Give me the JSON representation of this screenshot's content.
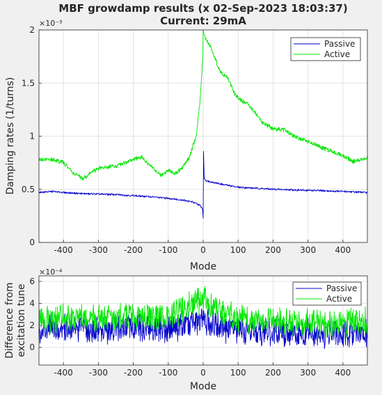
{
  "title": [
    "MBF growdamp results (x 02-Sep-2023 18:03:37)",
    "Current: 29mA"
  ],
  "colors": {
    "passive": "#0000cc",
    "active": "#00e600",
    "grid": "#dcdcdc",
    "axis": "#262626"
  },
  "chart_data": [
    {
      "type": "line",
      "xlabel": "Mode",
      "ylabel": "Damping rates (1/turns)",
      "y_exponent": "×10⁻³",
      "xlim": [
        -470,
        470
      ],
      "ylim": [
        0,
        2
      ],
      "xticks": [
        -400,
        -300,
        -200,
        -100,
        0,
        100,
        200,
        300,
        400
      ],
      "yticks": [
        0,
        0.5,
        1,
        1.5,
        2
      ],
      "ytick_labels": [
        "0",
        "0.5",
        "1",
        "1.5",
        "2"
      ],
      "grid": true,
      "legend_position": "top-right",
      "series": [
        {
          "name": "Passive",
          "points": [
            [
              -470,
              0.47
            ],
            [
              -430,
              0.48
            ],
            [
              -400,
              0.47
            ],
            [
              -350,
              0.46
            ],
            [
              -300,
              0.455
            ],
            [
              -250,
              0.45
            ],
            [
              -200,
              0.44
            ],
            [
              -150,
              0.43
            ],
            [
              -100,
              0.415
            ],
            [
              -60,
              0.4
            ],
            [
              -30,
              0.38
            ],
            [
              -10,
              0.35
            ],
            [
              -2,
              0.32
            ],
            [
              0,
              0.23
            ],
            [
              1,
              0.85
            ],
            [
              3,
              0.6
            ],
            [
              10,
              0.58
            ],
            [
              50,
              0.55
            ],
            [
              100,
              0.52
            ],
            [
              200,
              0.5
            ],
            [
              300,
              0.49
            ],
            [
              400,
              0.48
            ],
            [
              470,
              0.47
            ]
          ]
        },
        {
          "name": "Active",
          "points": [
            [
              -470,
              0.78
            ],
            [
              -430,
              0.78
            ],
            [
              -400,
              0.75
            ],
            [
              -370,
              0.65
            ],
            [
              -345,
              0.6
            ],
            [
              -320,
              0.66
            ],
            [
              -300,
              0.7
            ],
            [
              -250,
              0.72
            ],
            [
              -200,
              0.78
            ],
            [
              -175,
              0.8
            ],
            [
              -150,
              0.72
            ],
            [
              -120,
              0.63
            ],
            [
              -100,
              0.68
            ],
            [
              -80,
              0.65
            ],
            [
              -60,
              0.7
            ],
            [
              -40,
              0.8
            ],
            [
              -20,
              1.0
            ],
            [
              -10,
              1.3
            ],
            [
              -5,
              1.55
            ],
            [
              -1,
              1.75
            ],
            [
              0,
              2.0
            ],
            [
              5,
              1.92
            ],
            [
              20,
              1.85
            ],
            [
              50,
              1.6
            ],
            [
              70,
              1.55
            ],
            [
              90,
              1.4
            ],
            [
              110,
              1.33
            ],
            [
              130,
              1.3
            ],
            [
              150,
              1.22
            ],
            [
              170,
              1.13
            ],
            [
              200,
              1.07
            ],
            [
              230,
              1.06
            ],
            [
              260,
              1.0
            ],
            [
              300,
              0.95
            ],
            [
              350,
              0.88
            ],
            [
              400,
              0.82
            ],
            [
              430,
              0.76
            ],
            [
              470,
              0.8
            ]
          ]
        }
      ]
    },
    {
      "type": "line",
      "xlabel": "Mode",
      "ylabel": [
        "Difference from",
        "excitation tune"
      ],
      "y_exponent": "×10⁻⁴",
      "xlim": [
        -470,
        470
      ],
      "ylim": [
        -1.6,
        6.5
      ],
      "xticks": [
        -400,
        -300,
        -200,
        -100,
        0,
        100,
        200,
        300,
        400
      ],
      "yticks": [
        0,
        2,
        4,
        6
      ],
      "ytick_labels": [
        "0",
        "2",
        "4",
        "6"
      ],
      "grid": true,
      "legend_position": "top-right",
      "series": [
        {
          "name": "Passive",
          "points": [
            [
              -470,
              1.5
            ],
            [
              -400,
              1.8
            ],
            [
              -300,
              1.6
            ],
            [
              -200,
              1.8
            ],
            [
              -100,
              1.5
            ],
            [
              -50,
              2.0
            ],
            [
              -20,
              2.3
            ],
            [
              0,
              2.6
            ],
            [
              20,
              2.2
            ],
            [
              50,
              1.7
            ],
            [
              100,
              1.5
            ],
            [
              200,
              1.4
            ],
            [
              300,
              1.3
            ],
            [
              400,
              1.3
            ],
            [
              470,
              1.3
            ]
          ]
        },
        {
          "name": "Active",
          "points": [
            [
              -470,
              2.4
            ],
            [
              -400,
              2.8
            ],
            [
              -300,
              2.6
            ],
            [
              -200,
              2.8
            ],
            [
              -100,
              2.8
            ],
            [
              -50,
              3.5
            ],
            [
              -20,
              4.2
            ],
            [
              0,
              4.6
            ],
            [
              20,
              3.8
            ],
            [
              50,
              3.0
            ],
            [
              100,
              2.6
            ],
            [
              200,
              2.4
            ],
            [
              300,
              2.2
            ],
            [
              400,
              2.2
            ],
            [
              470,
              2.4
            ]
          ]
        }
      ]
    }
  ]
}
